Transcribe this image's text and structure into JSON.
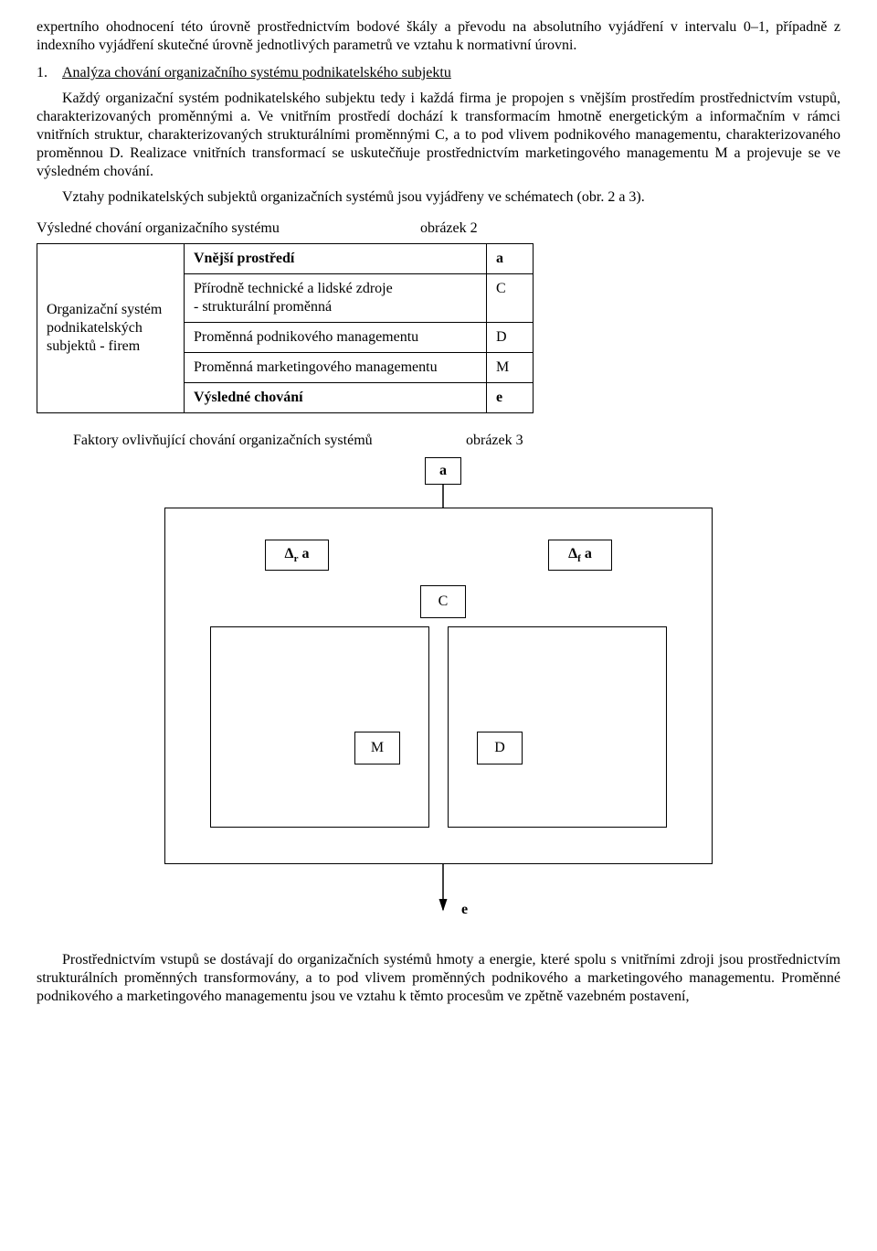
{
  "para1": "expertního ohodnocení této úrovně prostřednictvím bodové škály a převodu na absolutního vyjádření v intervalu 0–1, případně z indexního vyjádření skutečné úrovně jednotlivých parametrů ve vztahu k normativní úrovni.",
  "heading": {
    "num": "1.",
    "text": "Analýza chování organizačního systému podnikatelského subjektu"
  },
  "para2a": "Každý organizační systém podnikatelského subjektu tedy i každá firma je propojen s vnějším prostředím prostřednictvím vstupů, charakterizovaných proměnnými a. Ve vnitřním prostředí dochází k transformacím hmotně energetickým a informačním v rámci vnitřních struktur, charakterizovaných strukturálními proměnnými C, a to pod vlivem podnikového managementu, charakterizovaného proměnnou D. Realizace vnitřních transformací se uskutečňuje prostřednictvím marketingového managementu M a projevuje se ve výsledném chování.",
  "para2b": "Vztahy podnikatelských subjektů organizačních systémů jsou vyjádřeny ve schématech (obr. 2 a 3).",
  "fig2": {
    "caption": "Výsledné chování organizačního systému",
    "ref": "obrázek 2",
    "col1": "Organizační systém podnikatelských subjektů - firem",
    "rows": [
      {
        "label": "Vnější prostředí",
        "sym": "a",
        "bold": true
      },
      {
        "label": "Přírodně technické a lidské zdroje\n- strukturální proměnná",
        "sym": "C",
        "bold": false
      },
      {
        "label": "Proměnná podnikového managementu",
        "sym": "D",
        "bold": false
      },
      {
        "label": "Proměnná marketingového managementu",
        "sym": "M",
        "bold": false
      },
      {
        "label": "Výsledné chování",
        "sym": "e",
        "bold": true
      }
    ]
  },
  "fig3": {
    "caption": "Faktory ovlivňující chování organizačních systémů",
    "ref": "obrázek 3",
    "labels": {
      "a": "a",
      "dr": "Δ",
      "dr_sub": "r",
      "dr_a": " a",
      "df": "Δ",
      "df_sub": "f",
      "df_a": " a",
      "C": "C",
      "M": "M",
      "D": "D",
      "e": "e"
    }
  },
  "para3": "Prostřednictvím vstupů se dostávají do organizačních systémů hmoty a energie, které spolu s vnitřními zdroji jsou prostřednictvím strukturálních proměnných transformovány, a to pod vlivem proměnných podnikového a marketingového managementu. Proměnné podnikového a marketingového managementu jsou ve vztahu k těmto procesům ve zpětně vazebném postavení,"
}
